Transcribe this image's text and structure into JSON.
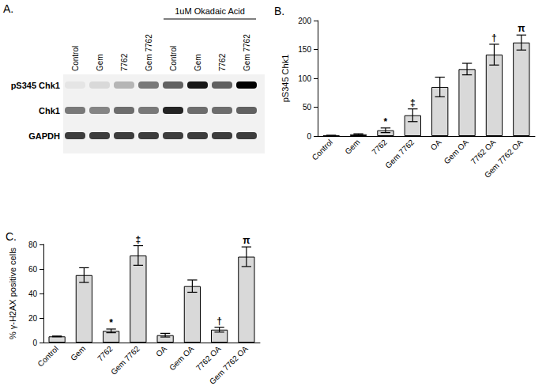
{
  "blot": {
    "panel": "A.",
    "treatment_label": "1uM Okadaic Acid",
    "treatment_lanes": [
      4,
      5,
      6,
      7
    ],
    "lanes": [
      "Control",
      "Gem",
      "7762",
      "Gem 7762",
      "Control",
      "Gem",
      "7762",
      "Gem 7762"
    ],
    "rows": [
      {
        "name": "pS345 Chk1",
        "intensity": [
          0.05,
          0.1,
          0.25,
          0.5,
          0.6,
          0.9,
          0.6,
          1.0
        ]
      },
      {
        "name": "Chk1",
        "intensity": [
          0.5,
          0.45,
          0.55,
          0.5,
          0.85,
          0.55,
          0.55,
          0.6
        ]
      },
      {
        "name": "GAPDH",
        "intensity": [
          0.75,
          0.75,
          0.75,
          0.75,
          0.75,
          0.75,
          0.75,
          0.75
        ]
      }
    ]
  },
  "chart_data": [
    {
      "panel": "B.",
      "type": "bar",
      "y_label": "pS345 Chk1",
      "categories": [
        "Control",
        "Gem",
        "7762",
        "Gem 7762",
        "OA",
        "Gem OA",
        "7762 OA",
        "Gem 7762 OA"
      ],
      "values": [
        1,
        3,
        10,
        36,
        85,
        116,
        141,
        162
      ],
      "errors": [
        0.5,
        1,
        4,
        11,
        17,
        10,
        18,
        13
      ],
      "annotations": [
        null,
        null,
        "*",
        "‡",
        null,
        null,
        "†",
        "π"
      ],
      "color": "#d9d9d9",
      "ylim": [
        0,
        200
      ],
      "yticks": [
        0,
        50,
        100,
        150,
        200
      ],
      "grid": false
    },
    {
      "panel": "C.",
      "type": "bar",
      "y_label": "% γ-H2AX positive cells",
      "categories": [
        "Control",
        "Gem",
        "7762",
        "Gem 7762",
        "OA",
        "Gem OA",
        "7762 OA",
        "Gem 7762 OA"
      ],
      "values": [
        5,
        55,
        9.5,
        71,
        6,
        46,
        10.5,
        70
      ],
      "errors": [
        0.3,
        6,
        1.5,
        8,
        1.5,
        5,
        2,
        8
      ],
      "annotations": [
        null,
        null,
        "*",
        "‡",
        null,
        null,
        "†",
        "π"
      ],
      "color": "#d9d9d9",
      "ylim": [
        0,
        80
      ],
      "yticks": [
        0,
        20,
        40,
        60,
        80
      ],
      "grid": false
    }
  ]
}
